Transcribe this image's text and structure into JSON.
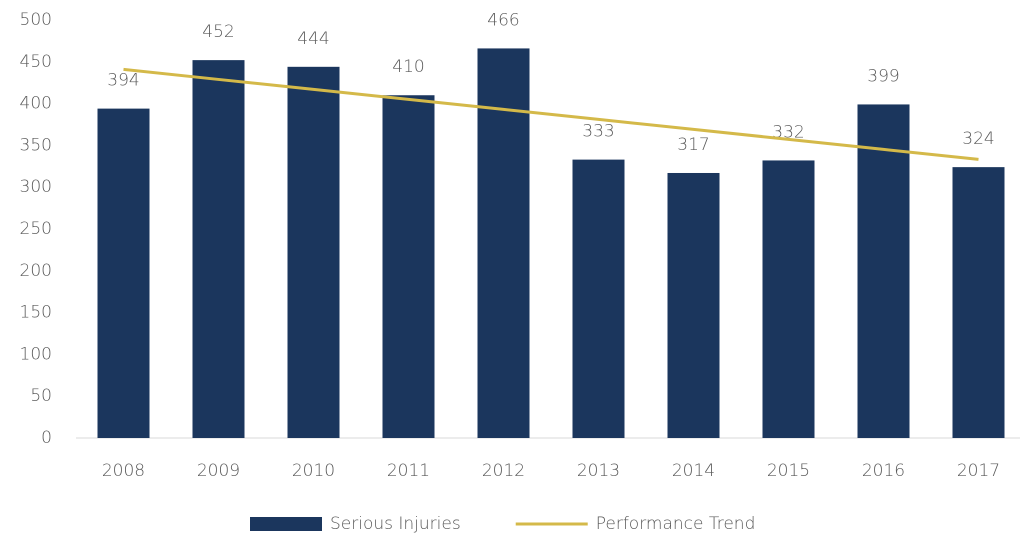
{
  "chart_data": {
    "type": "bar",
    "categories": [
      "2008",
      "2009",
      "2010",
      "2011",
      "2012",
      "2013",
      "2014",
      "2015",
      "2016",
      "2017"
    ],
    "series": [
      {
        "name": "Serious Injuries",
        "type": "bar",
        "color": "#1b365d",
        "values": [
          394,
          452,
          444,
          410,
          466,
          333,
          317,
          332,
          399,
          324
        ]
      },
      {
        "name": "Performance Trend",
        "type": "line",
        "color": "#d4b949",
        "values": [
          440.9,
          428.9,
          417.0,
          405.0,
          393.1,
          381.1,
          369.2,
          357.2,
          345.2,
          333.3
        ]
      }
    ],
    "ylim": [
      0,
      500
    ],
    "yticks": [
      0,
      50,
      100,
      150,
      200,
      250,
      300,
      350,
      400,
      450,
      500
    ],
    "legend": "bottom"
  }
}
